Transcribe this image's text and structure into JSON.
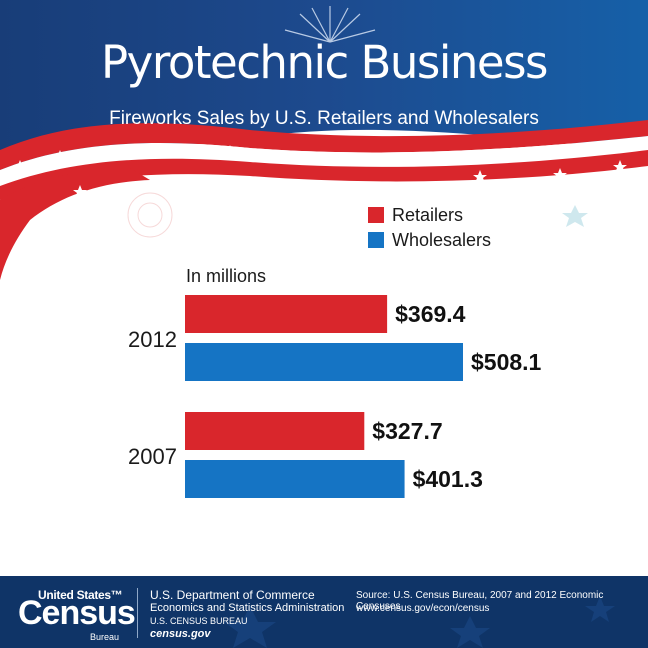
{
  "header": {
    "title": "Pyrotechnic Business",
    "subtitle": "Fireworks Sales by U.S. Retailers and Wholesalers"
  },
  "colors": {
    "retailers": "#d9262c",
    "wholesalers": "#1574c4",
    "header_blue": "#19417f",
    "footer_blue": "#0f3467"
  },
  "chart_data": {
    "type": "bar",
    "orientation": "horizontal",
    "unit_label": "In millions",
    "categories": [
      "2012",
      "2007"
    ],
    "series": [
      {
        "name": "Retailers",
        "values": [
          369.4,
          327.7
        ],
        "labels": [
          "$369.4",
          "$327.7"
        ]
      },
      {
        "name": "Wholesalers",
        "values": [
          508.1,
          401.3
        ],
        "labels": [
          "$508.1",
          "$401.3"
        ]
      }
    ],
    "legend_position": "top-right",
    "grid": false
  },
  "footer": {
    "logo_top": "United States™",
    "logo_main": "Census",
    "logo_bottom": "Bureau",
    "agency_line1": "U.S. Department of Commerce",
    "agency_line2": "Economics and Statistics Administration",
    "agency_line3": "U.S. CENSUS BUREAU",
    "agency_line4": "census.gov",
    "source_line1": "Source: U.S. Census Bureau, 2007 and 2012 Economic Censuses",
    "source_line2": "www.census.gov/econ/census"
  },
  "icons": [
    "firework-burst-icon",
    "star-icon",
    "census-logo"
  ]
}
